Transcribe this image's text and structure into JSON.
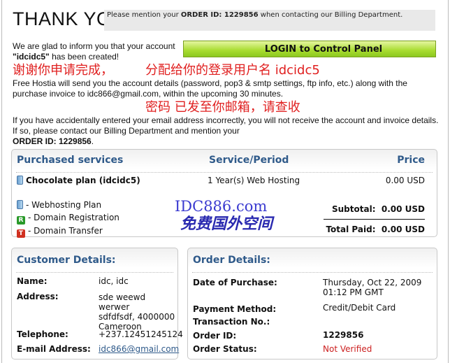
{
  "header": {
    "title": "THANK YOU!",
    "notice_pre": "Please mention your ",
    "notice_bold": "ORDER ID: 1229856",
    "notice_post": " when contacting our Billing Department."
  },
  "login_button": "LOGIN to Control Panel",
  "intro": {
    "line1": "We are glad to inform you that your account",
    "account": "\"idcidc5\"",
    "line2": " has been created!"
  },
  "details_para": "Free Hostia will send you the account details (password, pop3 & smtp settings, ftp info, etc.) along with the purchase invoice to idc866@gmail.com, within the upcoming 30 minutes.",
  "warning_para": "If you have accidentally entered your email address incorrectly, you will not receive the account and invoice details. If so, please contact our Billing Department and mention your",
  "warning_order": "ORDER ID: 1229856",
  "overlay": {
    "line1": "谢谢你申请完成，",
    "line2": "分配给你的登录用户名  idcidc5",
    "line3": "密码 已发至你邮箱，请查收"
  },
  "purchased": {
    "headers": {
      "service": "Purchased services",
      "period": "Service/Period",
      "price": "Price"
    },
    "item": {
      "name": "Chocolate plan (idcidc5)",
      "period": "1 Year(s) Web Hosting",
      "price": "0.00 USD"
    },
    "legend": [
      {
        "icon": "server-icon",
        "label": "- Webhosting Plan"
      },
      {
        "icon": "R",
        "label": "- Domain Registration"
      },
      {
        "icon": "T",
        "label": "- Domain Transfer"
      }
    ],
    "subtotal_label": "Subtotal:",
    "subtotal": "0.00 USD",
    "total_label": "Total Paid:",
    "total": "0.00 USD"
  },
  "customer": {
    "title": "Customer Details:",
    "name_label": "Name:",
    "name": "idc, idc",
    "address_label": "Address:",
    "address1": "sde weewd werwer",
    "address2": "sdfdfsdf, 4000000",
    "address3": "Cameroon",
    "phone_label": "Telephone:",
    "phone": "+237.12451245124",
    "email_label": "E-mail Address:",
    "email": "idc866@gmail.com"
  },
  "order": {
    "title": "Order Details:",
    "date_label": "Date of Purchase:",
    "date1": "Thursday, Oct 22, 2009",
    "date2": "01:12 PM GMT",
    "payment_label": "Payment Method:",
    "payment": "Credit/Debit Card",
    "transaction_label": "Transaction No.:",
    "id_label": "Order ID:",
    "id": "1229856",
    "status_label": "Order Status:",
    "status": "Not Verified",
    "status_color": "#cc2020"
  },
  "watermark": {
    "line1": "IDC886.com",
    "line2": "免费国外空间"
  }
}
